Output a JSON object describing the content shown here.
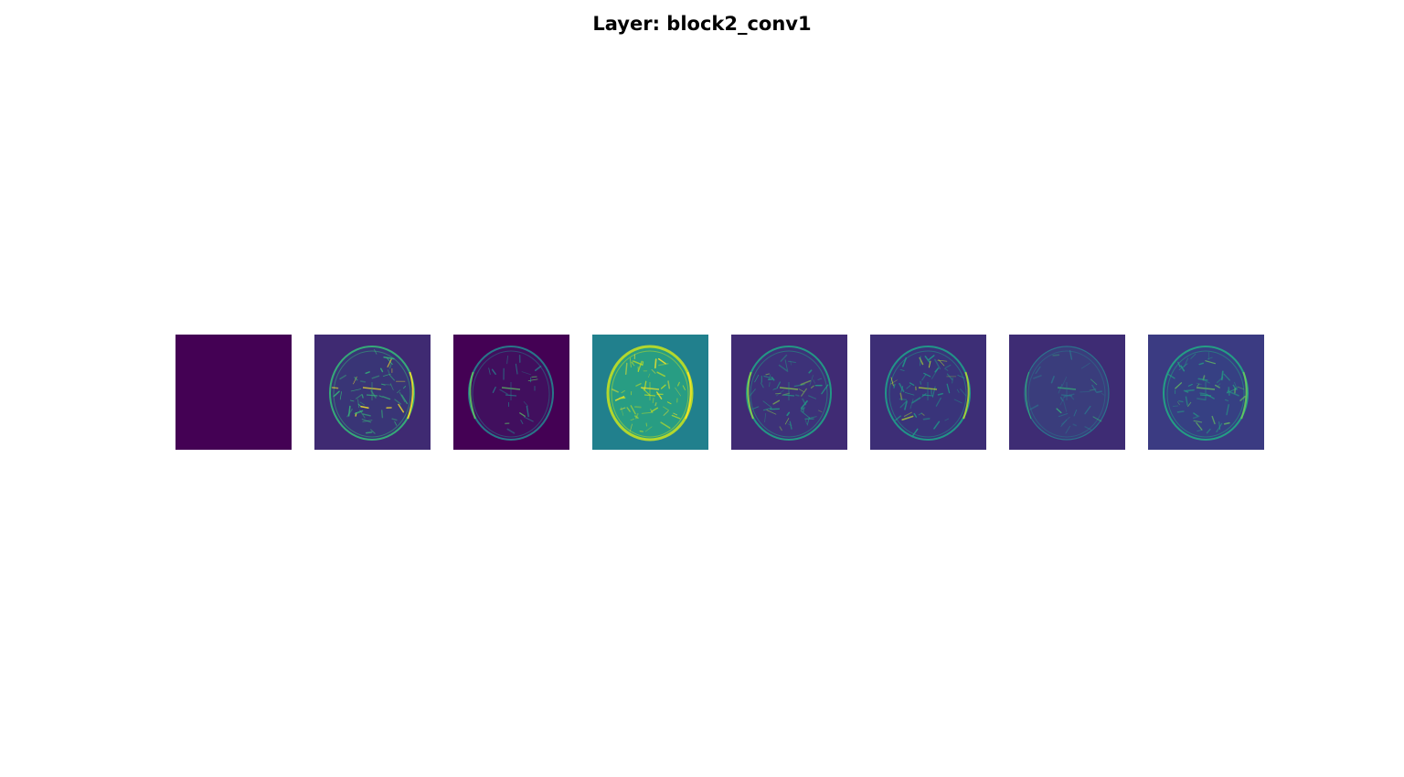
{
  "figure": {
    "title": "Layer: block2_conv1"
  },
  "colormap": "viridis",
  "feature_maps": [
    {
      "index": 0,
      "background": "#440154",
      "edge": "#440154",
      "accent": "#440154",
      "interior": "#440154",
      "style": "blank"
    },
    {
      "index": 1,
      "background": "#3f2a72",
      "edge": "#35b779",
      "accent": "#fde725",
      "interior": "#2e4a7f",
      "style": "dense"
    },
    {
      "index": 2,
      "background": "#440154",
      "edge": "#26828e",
      "accent": "#5ec962",
      "interior": "#3b2c73",
      "style": "sparse"
    },
    {
      "index": 3,
      "background": "#21808d",
      "edge": "#c2df23",
      "accent": "#fde725",
      "interior": "#2fb47c",
      "style": "bright"
    },
    {
      "index": 4,
      "background": "#402b74",
      "edge": "#20a386",
      "accent": "#8fd744",
      "interior": "#3a3f83",
      "style": "dense"
    },
    {
      "index": 5,
      "background": "#3d2e76",
      "edge": "#1f9e89",
      "accent": "#b5de2b",
      "interior": "#333f83",
      "style": "dense"
    },
    {
      "index": 6,
      "background": "#3e2c74",
      "edge": "#2a788e",
      "accent": "#35b779",
      "interior": "#355f8d",
      "style": "faint"
    },
    {
      "index": 7,
      "background": "#3b3b82",
      "edge": "#22a884",
      "accent": "#6ccd5a",
      "interior": "#2f4a86",
      "style": "dense"
    }
  ]
}
